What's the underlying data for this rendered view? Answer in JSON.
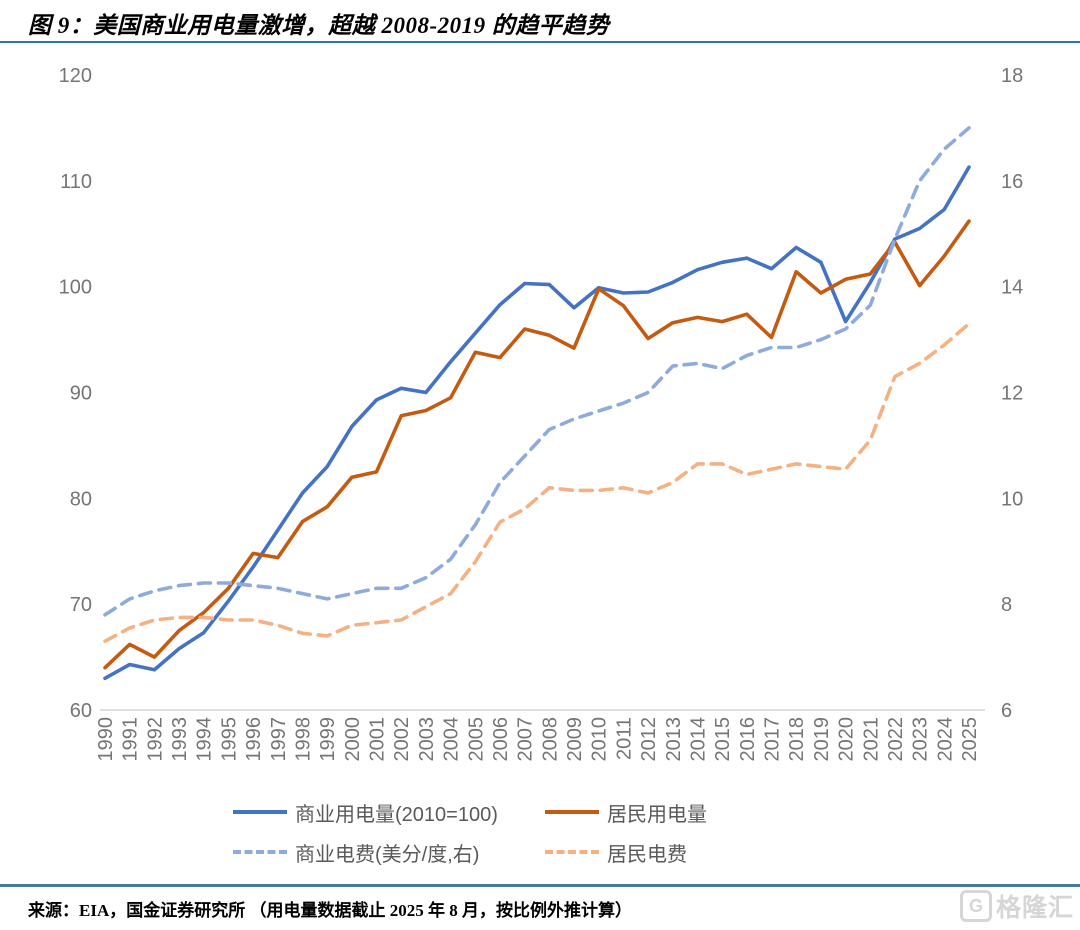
{
  "header": {
    "title": "图 9：美国商业用电量激增，超越 2008-2019 的趋平趋势"
  },
  "chart_data": {
    "type": "line",
    "title": "美国商业用电量激增，超越 2008-2019 的趋平趋势",
    "grid": false,
    "legend_position": "bottom",
    "x": [
      1990,
      1991,
      1992,
      1993,
      1994,
      1995,
      1996,
      1997,
      1998,
      1999,
      2000,
      2001,
      2002,
      2003,
      2004,
      2005,
      2006,
      2007,
      2008,
      2009,
      2010,
      2011,
      2012,
      2013,
      2014,
      2015,
      2016,
      2017,
      2018,
      2019,
      2020,
      2021,
      2022,
      2023,
      2024,
      2025
    ],
    "left_axis": {
      "range": [
        60,
        120
      ],
      "ticks": [
        60,
        70,
        80,
        90,
        100,
        110,
        120
      ]
    },
    "right_axis": {
      "range": [
        6,
        18
      ],
      "ticks": [
        6,
        8,
        10,
        12,
        14,
        16,
        18
      ]
    },
    "series": [
      {
        "name": "商业用电量(2010=100)",
        "axis": "left",
        "color": "#4472C4",
        "dash": false,
        "values": [
          63.0,
          64.3,
          63.8,
          65.8,
          67.3,
          70.3,
          73.5,
          77.0,
          80.5,
          83.0,
          86.8,
          89.3,
          90.4,
          90.0,
          92.9,
          95.6,
          98.3,
          100.3,
          100.2,
          98.0,
          99.9,
          99.4,
          99.5,
          100.4,
          101.6,
          102.3,
          102.7,
          101.7,
          103.7,
          102.3,
          96.7,
          100.4,
          104.5,
          105.5,
          107.3,
          111.3
        ]
      },
      {
        "name": "居民用电量",
        "axis": "left",
        "color": "#C55A11",
        "dash": false,
        "values": [
          64.0,
          66.2,
          65.0,
          67.5,
          69.2,
          71.5,
          74.8,
          74.4,
          77.8,
          79.2,
          82.0,
          82.5,
          87.8,
          88.3,
          89.5,
          93.8,
          93.3,
          96.0,
          95.4,
          94.2,
          99.8,
          98.2,
          95.1,
          96.6,
          97.1,
          96.7,
          97.4,
          95.2,
          101.4,
          99.4,
          100.7,
          101.2,
          104.2,
          100.1,
          102.9,
          106.2
        ]
      },
      {
        "name": "商业电费(美分/度,右)",
        "axis": "right",
        "color": "#8FAADC",
        "dash": true,
        "values": [
          7.8,
          8.1,
          8.25,
          8.35,
          8.4,
          8.4,
          8.35,
          8.3,
          8.2,
          8.1,
          8.2,
          8.3,
          8.3,
          8.5,
          8.85,
          9.5,
          10.3,
          10.8,
          11.3,
          11.5,
          11.65,
          11.8,
          12.0,
          12.5,
          12.55,
          12.45,
          12.7,
          12.85,
          12.85,
          13.0,
          13.2,
          13.65,
          14.9,
          16.0,
          16.6,
          17.0
        ]
      },
      {
        "name": "居民电费",
        "axis": "right",
        "color": "#F4B183",
        "dash": true,
        "values": [
          7.3,
          7.55,
          7.7,
          7.75,
          7.75,
          7.7,
          7.7,
          7.6,
          7.45,
          7.4,
          7.6,
          7.65,
          7.7,
          7.95,
          8.2,
          8.8,
          9.55,
          9.8,
          10.2,
          10.15,
          10.15,
          10.2,
          10.1,
          10.3,
          10.65,
          10.65,
          10.45,
          10.55,
          10.65,
          10.6,
          10.55,
          11.1,
          12.3,
          12.55,
          12.9,
          13.3
        ]
      }
    ]
  },
  "footer": {
    "source": "来源：EIA，国金证券研究所 （用电量数据截止 2025 年 8 月，按比例外推计算）",
    "watermark_g": "G",
    "watermark_text": "格隆汇"
  }
}
